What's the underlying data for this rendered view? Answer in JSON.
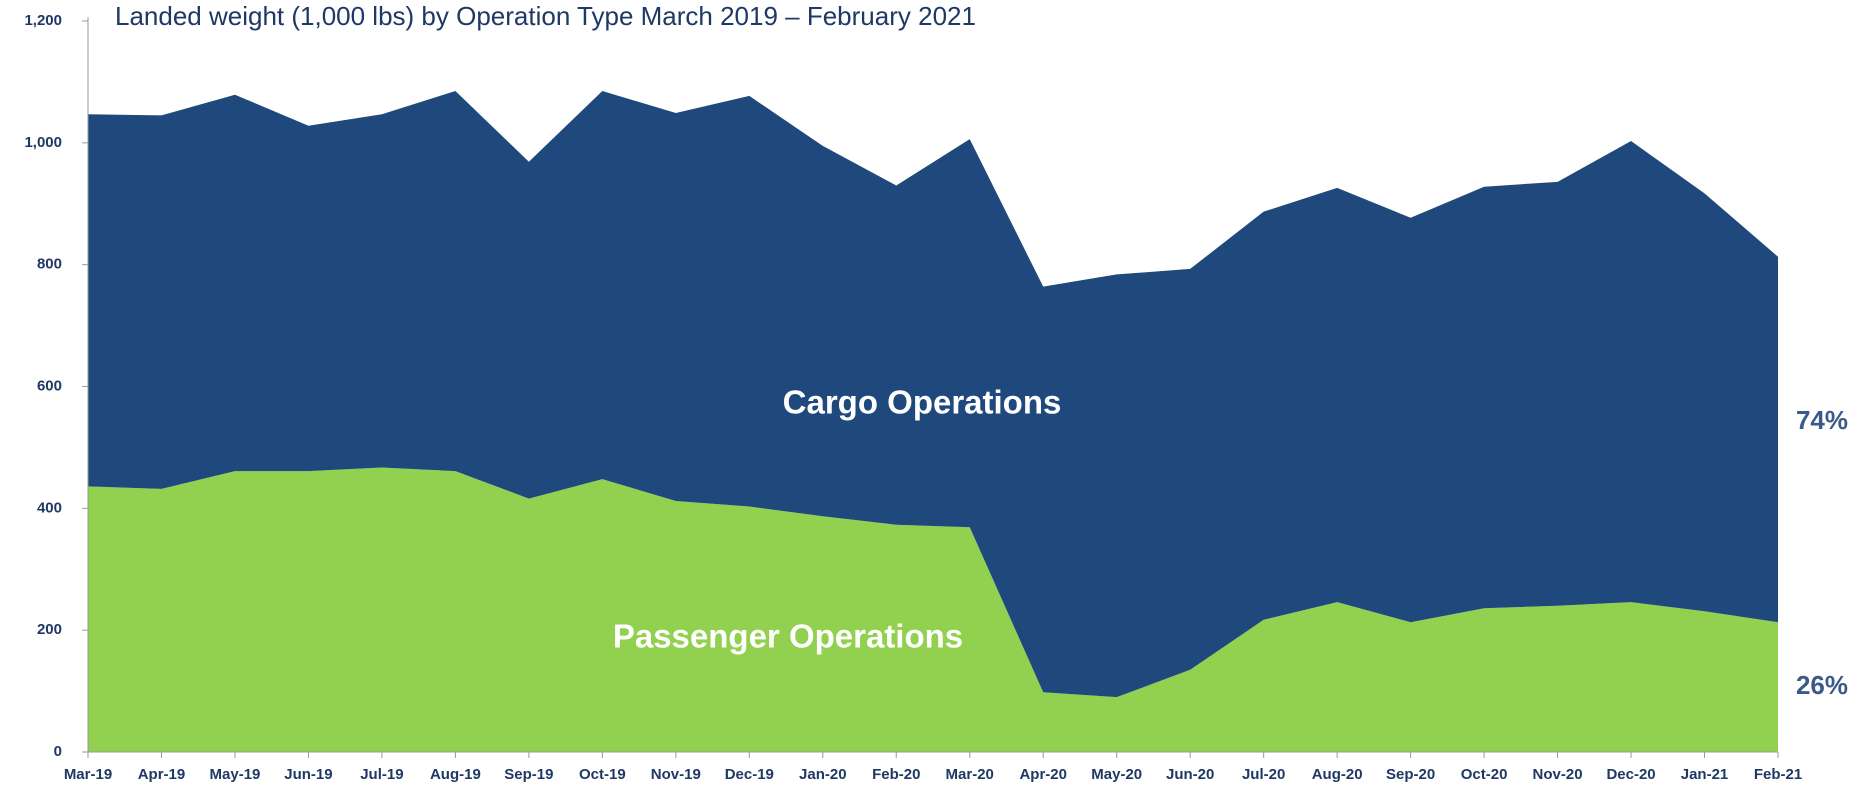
{
  "chart_data": {
    "type": "stacked_area",
    "title": "Landed weight (1,000 lbs) by Operation Type March 2019 – February 2021",
    "categories": [
      "Mar-19",
      "Apr-19",
      "May-19",
      "Jun-19",
      "Jul-19",
      "Aug-19",
      "Sep-19",
      "Oct-19",
      "Nov-19",
      "Dec-19",
      "Jan-20",
      "Feb-20",
      "Mar-20",
      "Apr-20",
      "May-20",
      "Jun-20",
      "Jul-20",
      "Aug-20",
      "Sep-20",
      "Oct-20",
      "Nov-20",
      "Dec-20",
      "Jan-21",
      "Feb-21"
    ],
    "series": [
      {
        "name": "Passenger Operations",
        "color": "#92d050",
        "values": [
          436,
          432,
          461,
          461,
          467,
          461,
          416,
          448,
          412,
          403,
          387,
          373,
          369,
          98,
          90,
          135,
          217,
          246,
          213,
          236,
          240,
          246,
          231,
          213
        ]
      },
      {
        "name": "Cargo Operations",
        "color": "#1f497d",
        "values": [
          611,
          613,
          618,
          567,
          580,
          624,
          553,
          637,
          637,
          674,
          608,
          557,
          637,
          666,
          694,
          658,
          670,
          680,
          664,
          692,
          696,
          757,
          686,
          600
        ]
      }
    ],
    "annotations": [
      "26%",
      "74%"
    ],
    "ylim": [
      0,
      1200
    ],
    "yticks": [
      0,
      200,
      400,
      600,
      800,
      {
        "value": 1000,
        "label": "1,000"
      },
      {
        "value": 1200,
        "label": "1,200"
      }
    ],
    "grid": false
  }
}
